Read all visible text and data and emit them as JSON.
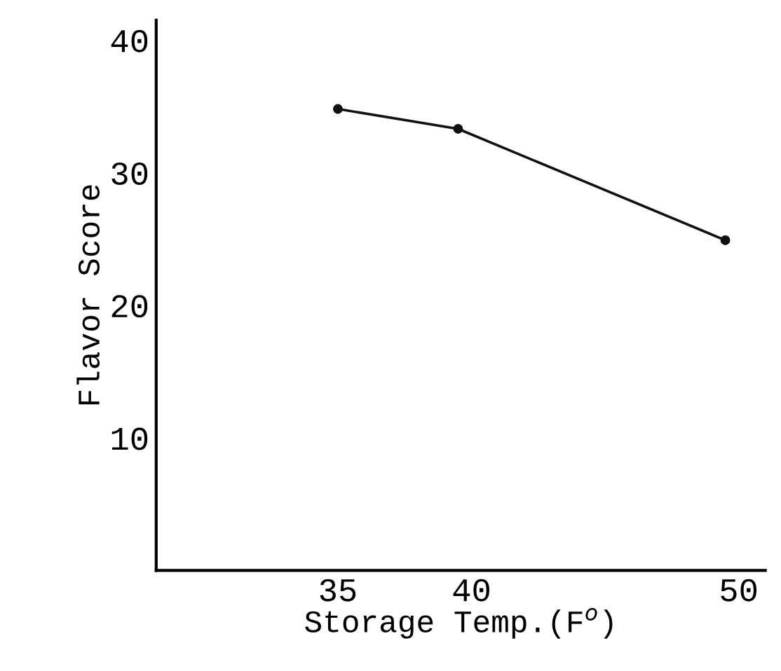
{
  "chart_data": {
    "type": "line",
    "xlabel": "Storage Temp.(F$^{o}$)",
    "ylabel": "Flavor Score",
    "x": [
      35,
      39.5,
      49.5
    ],
    "series": [
      {
        "color": "#111111",
        "values": [
          34.8,
          33.3,
          24.9
        ]
      }
    ],
    "xlim": [
      28.2,
      51
    ],
    "ylim": [
      0,
      41.5
    ],
    "xticks": [
      35,
      40,
      50
    ],
    "yticks": [
      10,
      20,
      30,
      40
    ],
    "marker": "circle",
    "line_style": "solid",
    "grid": false,
    "legend": false
  }
}
